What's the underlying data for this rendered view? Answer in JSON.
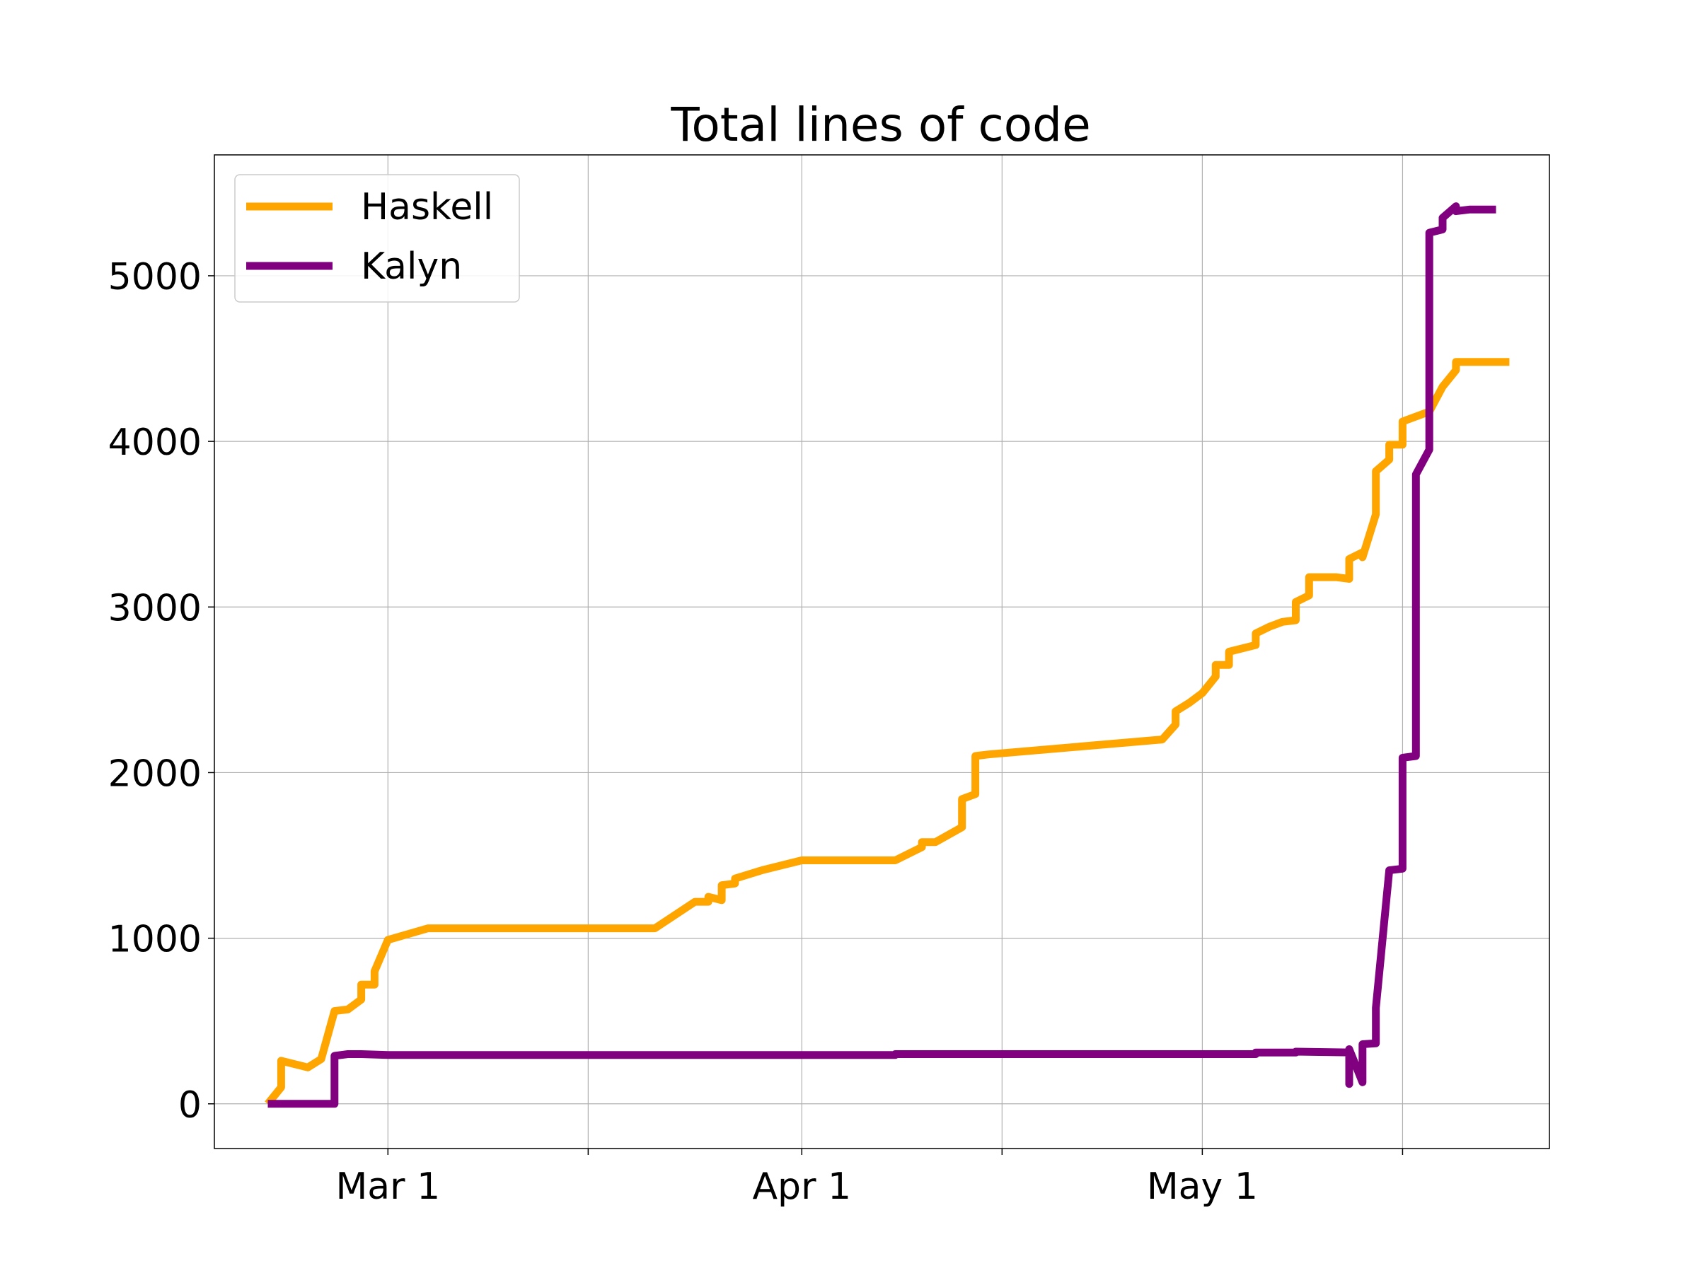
{
  "chart_data": {
    "type": "line",
    "title": "Total lines of code",
    "xlabel": "",
    "ylabel": "",
    "x_axis": {
      "type": "date",
      "range": [
        "2020-02-17",
        "2020-05-27"
      ],
      "ticks": [
        {
          "date": "2020-03-01",
          "label": "Mar 1"
        },
        {
          "date": "2020-03-16",
          "label": ""
        },
        {
          "date": "2020-04-01",
          "label": "Apr 1"
        },
        {
          "date": "2020-04-16",
          "label": ""
        },
        {
          "date": "2020-05-01",
          "label": "May 1"
        },
        {
          "date": "2020-05-16",
          "label": ""
        }
      ]
    },
    "y_axis": {
      "range": [
        -270,
        5730
      ],
      "ticks": [
        {
          "value": 0,
          "label": "0"
        },
        {
          "value": 1000,
          "label": "1000"
        },
        {
          "value": 2000,
          "label": "2000"
        },
        {
          "value": 3000,
          "label": "3000"
        },
        {
          "value": 4000,
          "label": "4000"
        },
        {
          "value": 5000,
          "label": "5000"
        }
      ]
    },
    "grid": true,
    "legend": {
      "position": "top-left"
    },
    "series": [
      {
        "name": "Haskell",
        "color": "#FFA500",
        "points": [
          [
            "2020-02-21",
            0
          ],
          [
            "2020-02-22",
            100
          ],
          [
            "2020-02-22",
            260
          ],
          [
            "2020-02-24",
            220
          ],
          [
            "2020-02-25",
            270
          ],
          [
            "2020-02-26",
            560
          ],
          [
            "2020-02-27",
            570
          ],
          [
            "2020-02-28",
            630
          ],
          [
            "2020-02-28",
            720
          ],
          [
            "2020-02-29",
            720
          ],
          [
            "2020-02-29",
            800
          ],
          [
            "2020-03-01",
            990
          ],
          [
            "2020-03-04",
            1060
          ],
          [
            "2020-03-21",
            1060
          ],
          [
            "2020-03-24",
            1220
          ],
          [
            "2020-03-25",
            1220
          ],
          [
            "2020-03-25",
            1250
          ],
          [
            "2020-03-26",
            1230
          ],
          [
            "2020-03-26",
            1320
          ],
          [
            "2020-03-27",
            1330
          ],
          [
            "2020-03-27",
            1360
          ],
          [
            "2020-03-29",
            1410
          ],
          [
            "2020-04-01",
            1470
          ],
          [
            "2020-04-08",
            1470
          ],
          [
            "2020-04-10",
            1550
          ],
          [
            "2020-04-10",
            1580
          ],
          [
            "2020-04-11",
            1580
          ],
          [
            "2020-04-13",
            1670
          ],
          [
            "2020-04-13",
            1840
          ],
          [
            "2020-04-14",
            1870
          ],
          [
            "2020-04-14",
            2100
          ],
          [
            "2020-04-15",
            2110
          ],
          [
            "2020-04-28",
            2200
          ],
          [
            "2020-04-29",
            2290
          ],
          [
            "2020-04-29",
            2370
          ],
          [
            "2020-04-30",
            2420
          ],
          [
            "2020-05-01",
            2480
          ],
          [
            "2020-05-02",
            2580
          ],
          [
            "2020-05-02",
            2650
          ],
          [
            "2020-05-03",
            2650
          ],
          [
            "2020-05-03",
            2730
          ],
          [
            "2020-05-05",
            2770
          ],
          [
            "2020-05-05",
            2840
          ],
          [
            "2020-05-06",
            2880
          ],
          [
            "2020-05-07",
            2910
          ],
          [
            "2020-05-08",
            2920
          ],
          [
            "2020-05-08",
            3030
          ],
          [
            "2020-05-09",
            3070
          ],
          [
            "2020-05-09",
            3180
          ],
          [
            "2020-05-11",
            3180
          ],
          [
            "2020-05-12",
            3170
          ],
          [
            "2020-05-12",
            3290
          ],
          [
            "2020-05-13",
            3330
          ],
          [
            "2020-05-13",
            3300
          ],
          [
            "2020-05-14",
            3560
          ],
          [
            "2020-05-14",
            3720
          ],
          [
            "2020-05-14",
            3820
          ],
          [
            "2020-05-15",
            3890
          ],
          [
            "2020-05-15",
            3980
          ],
          [
            "2020-05-16",
            3980
          ],
          [
            "2020-05-16",
            4120
          ],
          [
            "2020-05-18",
            4180
          ],
          [
            "2020-05-19",
            4330
          ],
          [
            "2020-05-20",
            4430
          ],
          [
            "2020-05-20",
            4480
          ],
          [
            "2020-05-24",
            4480
          ]
        ]
      },
      {
        "name": "Kalyn",
        "color": "#800080",
        "points": [
          [
            "2020-02-21",
            0
          ],
          [
            "2020-02-26",
            0
          ],
          [
            "2020-02-26",
            100
          ],
          [
            "2020-02-26",
            290
          ],
          [
            "2020-02-27",
            300
          ],
          [
            "2020-02-28",
            300
          ],
          [
            "2020-03-01",
            295
          ],
          [
            "2020-04-08",
            295
          ],
          [
            "2020-04-08",
            300
          ],
          [
            "2020-05-05",
            300
          ],
          [
            "2020-05-05",
            310
          ],
          [
            "2020-05-08",
            310
          ],
          [
            "2020-05-08",
            315
          ],
          [
            "2020-05-12",
            310
          ],
          [
            "2020-05-12",
            120
          ],
          [
            "2020-05-12",
            330
          ],
          [
            "2020-05-13",
            130
          ],
          [
            "2020-05-13",
            340
          ],
          [
            "2020-05-13",
            360
          ],
          [
            "2020-05-14",
            365
          ],
          [
            "2020-05-14",
            380
          ],
          [
            "2020-05-14",
            400
          ],
          [
            "2020-05-14",
            580
          ],
          [
            "2020-05-15",
            1410
          ],
          [
            "2020-05-16",
            1420
          ],
          [
            "2020-05-16",
            2000
          ],
          [
            "2020-05-16",
            2090
          ],
          [
            "2020-05-17",
            2100
          ],
          [
            "2020-05-17",
            3800
          ],
          [
            "2020-05-18",
            3950
          ],
          [
            "2020-05-18",
            5260
          ],
          [
            "2020-05-19",
            5280
          ],
          [
            "2020-05-19",
            5350
          ],
          [
            "2020-05-20",
            5420
          ],
          [
            "2020-05-20",
            5390
          ],
          [
            "2020-05-21",
            5400
          ],
          [
            "2020-05-23",
            5400
          ]
        ]
      }
    ]
  }
}
